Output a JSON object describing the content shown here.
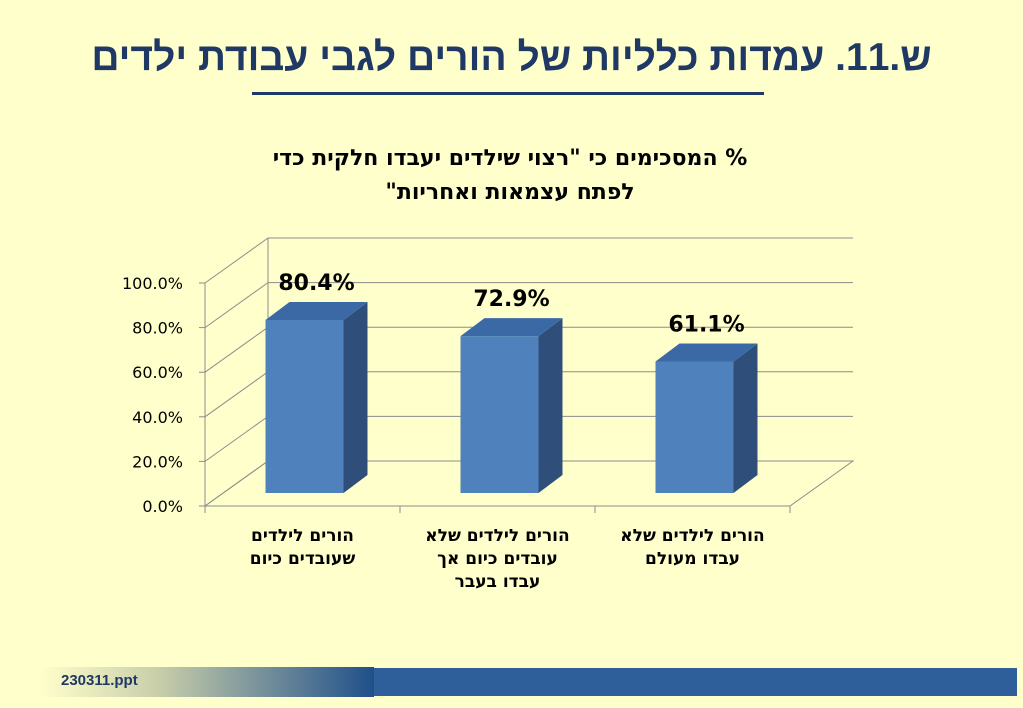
{
  "slide": {
    "title": "ש.11. עמדות כלליות של הורים לגבי עבודת ילדים",
    "footer": "230311.ppt"
  },
  "colors": {
    "background": "#ffffcc",
    "title": "#1f3864",
    "bar_front": "#4f81bd",
    "bar_side": "#2f4f7a",
    "bar_top": "#3b69a6",
    "footer_bar": "#2f5f9a"
  },
  "chart_data": {
    "type": "bar",
    "title": "% המסכימים כי \"רצוי שילדים יעבדו חלקית כדי לפתח עצמאות ואחריות\"",
    "title_lines": [
      "% המסכימים כי \"רצוי שילדים יעבדו חלקית כדי",
      "לפתח עצמאות ואחריות\""
    ],
    "categories": [
      [
        "הורים לילדים",
        "שעובדים כיום"
      ],
      [
        "הורים לילדים שלא",
        "עובדים כיום אך",
        "עבדו בעבר"
      ],
      [
        "הורים לילדים שלא",
        "עבדו מעולם"
      ]
    ],
    "values": [
      80.4,
      72.9,
      61.1
    ],
    "data_labels": [
      "80.4%",
      "72.9%",
      "61.1%"
    ],
    "yticks": [
      "0.0%",
      "20.0%",
      "40.0%",
      "60.0%",
      "80.0%",
      "100.0%"
    ],
    "ylim": [
      0,
      100
    ],
    "grid": true,
    "legend": "none",
    "style": "3d"
  }
}
